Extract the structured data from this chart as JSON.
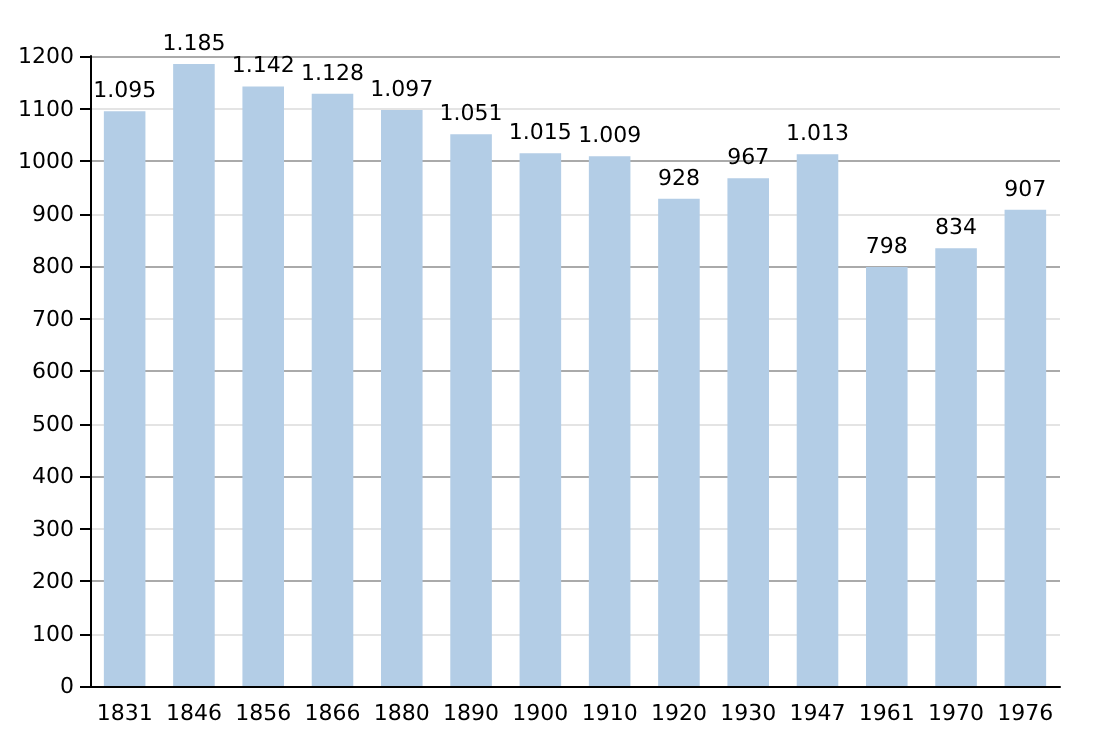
{
  "chart_data": {
    "type": "bar",
    "categories": [
      "1831",
      "1846",
      "1856",
      "1866",
      "1880",
      "1890",
      "1900",
      "1910",
      "1920",
      "1930",
      "1947",
      "1961",
      "1970",
      "1976"
    ],
    "values": [
      1095,
      1185,
      1142,
      1128,
      1097,
      1051,
      1015,
      1009,
      928,
      967,
      1013,
      798,
      834,
      907
    ],
    "value_labels": [
      "1.095",
      "1.185",
      "1.142",
      "1.128",
      "1.097",
      "1.051",
      "1.015",
      "1.009",
      "928",
      "967",
      "1.013",
      "798",
      "834",
      "907"
    ],
    "color": "#b3cde6",
    "ylim": [
      0,
      1200
    ],
    "yticks": [
      0,
      100,
      200,
      300,
      400,
      500,
      600,
      700,
      800,
      900,
      1000,
      1100,
      1200
    ],
    "grid": "y"
  }
}
